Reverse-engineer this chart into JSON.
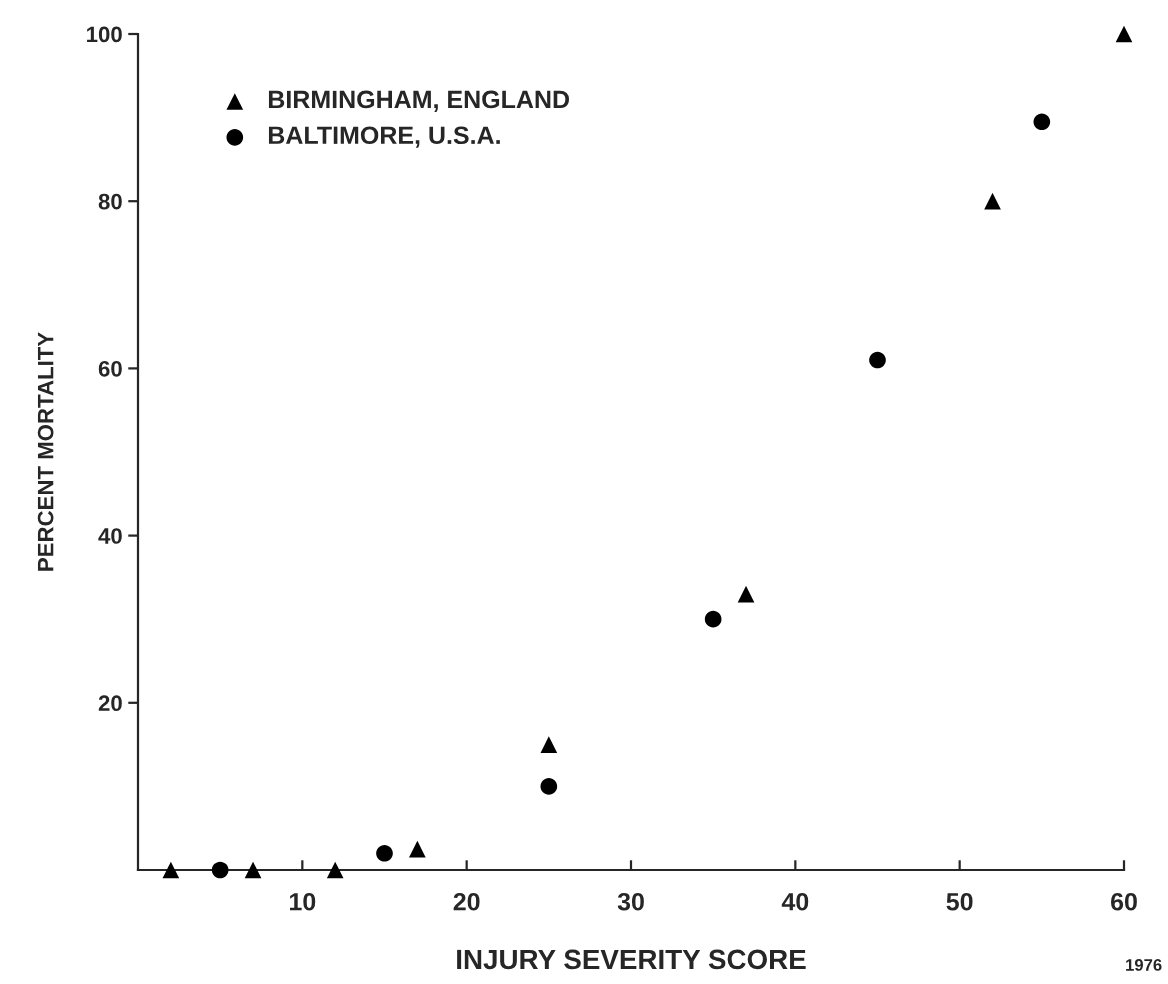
{
  "chart_data": {
    "type": "scatter",
    "xlabel": "INJURY SEVERITY SCORE",
    "ylabel": "PERCENT MORTALITY",
    "xlim": [
      0,
      60
    ],
    "xticks": [
      10,
      20,
      30,
      40,
      50,
      60
    ],
    "ylim": [
      0,
      100
    ],
    "yticks": [
      20,
      40,
      60,
      80,
      100
    ],
    "grid": false,
    "legend": "top left",
    "series": [
      {
        "name": "BIRMINGHAM, ENGLAND",
        "color": "#000000",
        "marker": "triangle",
        "x": [
          2,
          7,
          12,
          17,
          25,
          37,
          52,
          60
        ],
        "values": [
          0,
          0,
          0,
          2.5,
          15,
          33,
          80,
          100
        ]
      },
      {
        "name": "BALTIMORE, U.S.A.",
        "color": "#000000",
        "marker": "circle",
        "x": [
          5,
          15,
          25,
          35,
          45,
          55
        ],
        "values": [
          0,
          2,
          10,
          30,
          61,
          89.5
        ]
      }
    ],
    "annotations": [
      "1976"
    ]
  }
}
